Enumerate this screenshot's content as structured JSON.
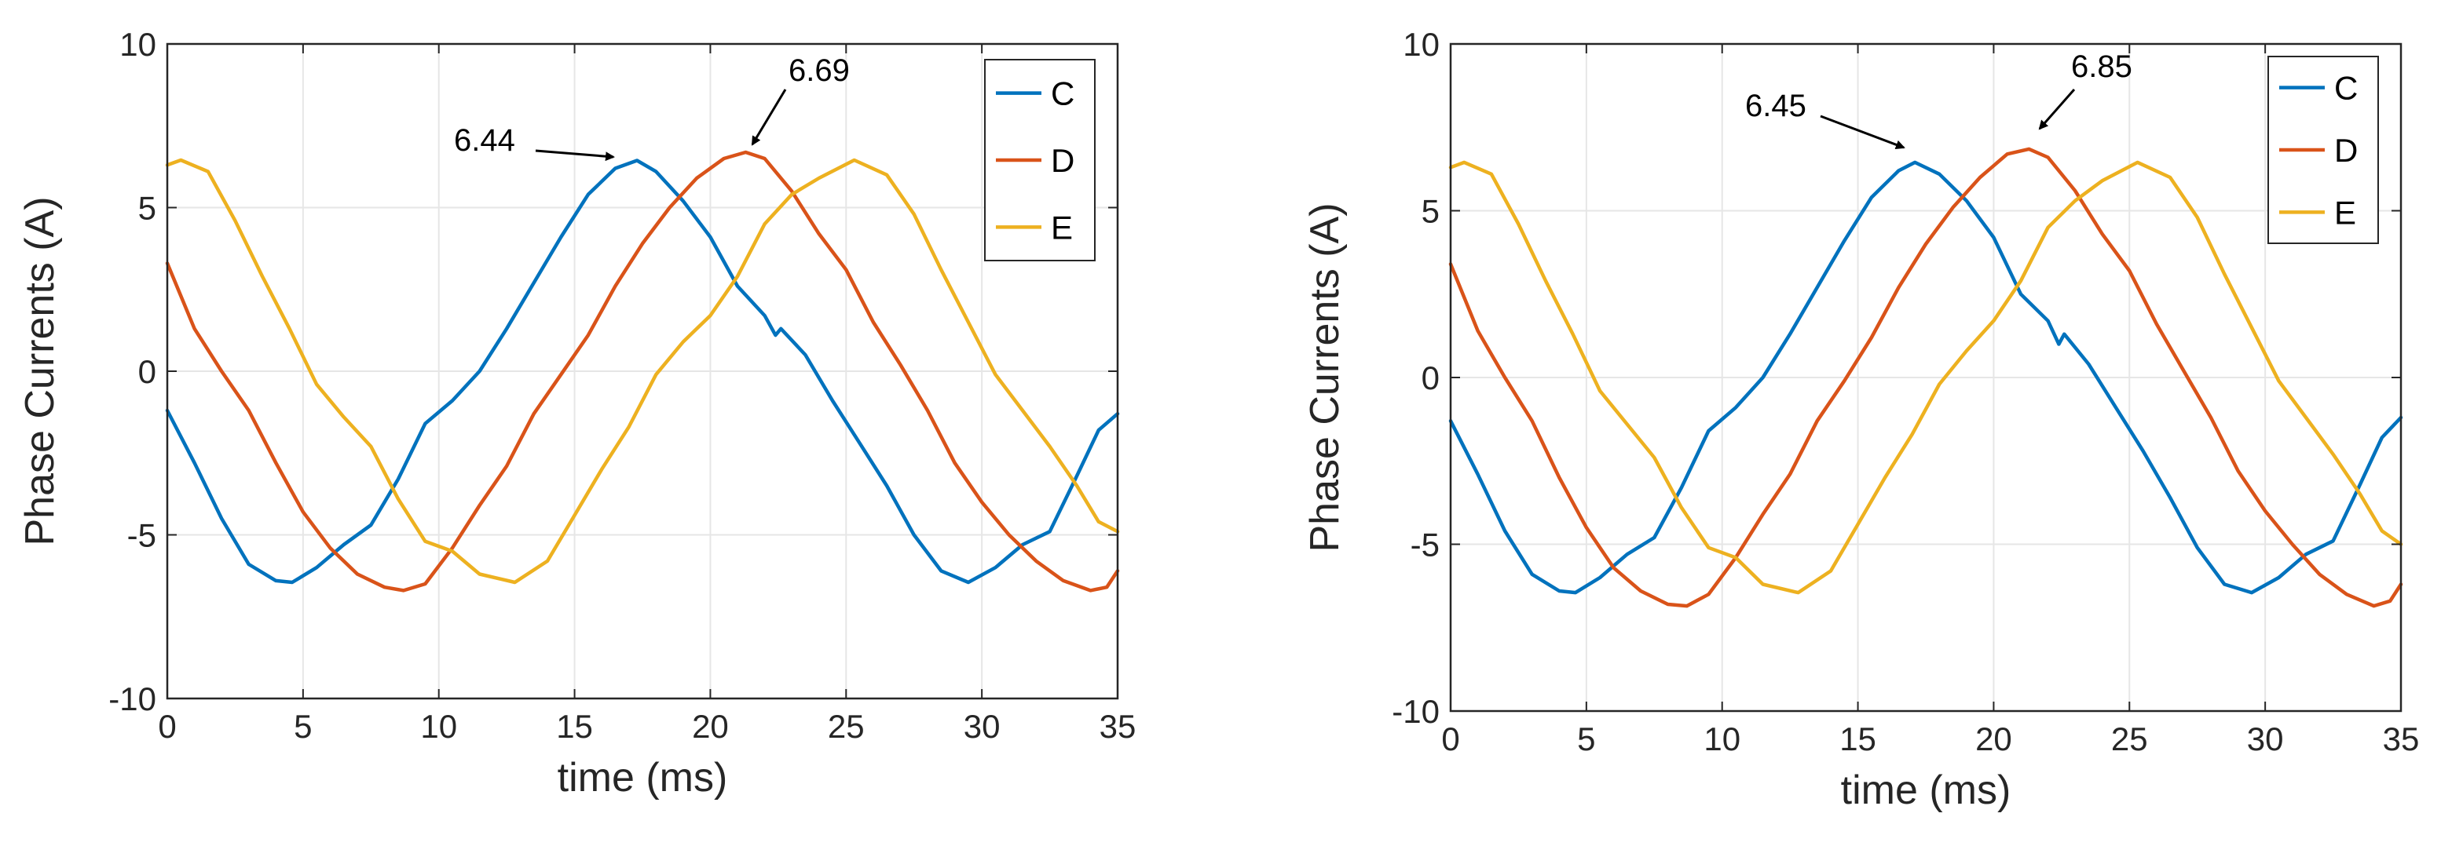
{
  "chart_data": [
    {
      "type": "line",
      "title": "",
      "xlabel": "time (ms)",
      "ylabel": "Phase Currents (A)",
      "xlim": [
        0,
        35
      ],
      "ylim": [
        -10,
        10
      ],
      "xticks": [
        0,
        5,
        10,
        15,
        20,
        25,
        30,
        35
      ],
      "yticks": [
        -10,
        -5,
        0,
        5,
        10
      ],
      "xtick_labels": [
        "0",
        "5",
        "10",
        "15",
        "20",
        "25",
        "30",
        "35"
      ],
      "ytick_labels": [
        "-10",
        "-5",
        "0",
        "5",
        "10"
      ],
      "grid": true,
      "legend_position": "top-right",
      "series": [
        {
          "name": "C",
          "color": "#0072BD",
          "points": [
            [
              0,
              -1.2
            ],
            [
              1,
              -2.8
            ],
            [
              2,
              -4.5
            ],
            [
              3,
              -5.9
            ],
            [
              4,
              -6.4
            ],
            [
              4.6,
              -6.45
            ],
            [
              5.5,
              -6.0
            ],
            [
              6.5,
              -5.3
            ],
            [
              7.5,
              -4.7
            ],
            [
              8.5,
              -3.3
            ],
            [
              9.5,
              -1.6
            ],
            [
              10.5,
              -0.9
            ],
            [
              11.5,
              0.0
            ],
            [
              12.5,
              1.3
            ],
            [
              13.5,
              2.7
            ],
            [
              14.5,
              4.1
            ],
            [
              15.5,
              5.4
            ],
            [
              16.5,
              6.2
            ],
            [
              17.3,
              6.44
            ],
            [
              18,
              6.1
            ],
            [
              19,
              5.2
            ],
            [
              20,
              4.1
            ],
            [
              21,
              2.6
            ],
            [
              22,
              1.7
            ],
            [
              22.4,
              1.1
            ],
            [
              22.6,
              1.3
            ],
            [
              23.5,
              0.5
            ],
            [
              24.5,
              -0.9
            ],
            [
              25.5,
              -2.2
            ],
            [
              26.5,
              -3.5
            ],
            [
              27.5,
              -5.0
            ],
            [
              28.5,
              -6.1
            ],
            [
              29.5,
              -6.45
            ],
            [
              30.5,
              -6.0
            ],
            [
              31.5,
              -5.3
            ],
            [
              32.5,
              -4.9
            ],
            [
              33.5,
              -3.2
            ],
            [
              34.3,
              -1.8
            ],
            [
              35,
              -1.3
            ]
          ]
        },
        {
          "name": "D",
          "color": "#D95319",
          "points": [
            [
              0,
              3.3
            ],
            [
              1,
              1.3
            ],
            [
              2,
              0.0
            ],
            [
              3,
              -1.2
            ],
            [
              4,
              -2.8
            ],
            [
              5,
              -4.3
            ],
            [
              6,
              -5.4
            ],
            [
              7,
              -6.2
            ],
            [
              8,
              -6.6
            ],
            [
              8.7,
              -6.7
            ],
            [
              9.5,
              -6.5
            ],
            [
              10.5,
              -5.4
            ],
            [
              11.5,
              -4.1
            ],
            [
              12.5,
              -2.9
            ],
            [
              13.5,
              -1.3
            ],
            [
              14.5,
              -0.1
            ],
            [
              15.5,
              1.1
            ],
            [
              16.5,
              2.6
            ],
            [
              17.5,
              3.9
            ],
            [
              18.5,
              5.0
            ],
            [
              19.5,
              5.9
            ],
            [
              20.5,
              6.5
            ],
            [
              21.3,
              6.69
            ],
            [
              22,
              6.5
            ],
            [
              23,
              5.5
            ],
            [
              24,
              4.2
            ],
            [
              25,
              3.1
            ],
            [
              26,
              1.5
            ],
            [
              27,
              0.2
            ],
            [
              28,
              -1.2
            ],
            [
              29,
              -2.8
            ],
            [
              30,
              -4.0
            ],
            [
              31,
              -5.0
            ],
            [
              32,
              -5.8
            ],
            [
              33,
              -6.4
            ],
            [
              34,
              -6.7
            ],
            [
              34.6,
              -6.6
            ],
            [
              35,
              -6.1
            ]
          ]
        },
        {
          "name": "E",
          "color": "#EDB120",
          "points": [
            [
              0,
              6.3
            ],
            [
              0.5,
              6.45
            ],
            [
              1.5,
              6.1
            ],
            [
              2.5,
              4.6
            ],
            [
              3.5,
              2.9
            ],
            [
              4.5,
              1.3
            ],
            [
              5.5,
              -0.4
            ],
            [
              6.5,
              -1.4
            ],
            [
              7.5,
              -2.3
            ],
            [
              8.5,
              -3.9
            ],
            [
              9.5,
              -5.2
            ],
            [
              10.5,
              -5.5
            ],
            [
              11.5,
              -6.2
            ],
            [
              12.8,
              -6.45
            ],
            [
              14,
              -5.8
            ],
            [
              15,
              -4.4
            ],
            [
              16,
              -3.0
            ],
            [
              17,
              -1.7
            ],
            [
              18,
              -0.1
            ],
            [
              19,
              0.9
            ],
            [
              20,
              1.7
            ],
            [
              21,
              2.9
            ],
            [
              22,
              4.5
            ],
            [
              23,
              5.4
            ],
            [
              24,
              5.9
            ],
            [
              25.3,
              6.45
            ],
            [
              26.5,
              6.0
            ],
            [
              27.5,
              4.8
            ],
            [
              28.5,
              3.1
            ],
            [
              29.5,
              1.5
            ],
            [
              30.5,
              -0.1
            ],
            [
              31.5,
              -1.2
            ],
            [
              32.5,
              -2.3
            ],
            [
              33.5,
              -3.5
            ],
            [
              34.3,
              -4.6
            ],
            [
              35,
              -4.9
            ]
          ]
        }
      ],
      "annotations": [
        {
          "label": "6.44",
          "x": 17.3,
          "y": 6.44
        },
        {
          "label": "6.69",
          "x": 21.3,
          "y": 6.69
        }
      ]
    },
    {
      "type": "line",
      "title": "",
      "xlabel": "time (ms)",
      "ylabel": "Phase Currents (A)",
      "xlim": [
        0,
        35
      ],
      "ylim": [
        -10,
        10
      ],
      "xticks": [
        0,
        5,
        10,
        15,
        20,
        25,
        30,
        35
      ],
      "yticks": [
        -10,
        -5,
        0,
        5,
        10
      ],
      "xtick_labels": [
        "0",
        "5",
        "10",
        "15",
        "20",
        "25",
        "30",
        "35"
      ],
      "ytick_labels": [
        "-10",
        "-5",
        "0",
        "5",
        "10"
      ],
      "grid": true,
      "legend_position": "top-right",
      "series": [
        {
          "name": "C",
          "color": "#0072BD",
          "points": [
            [
              0,
              -1.3
            ],
            [
              1,
              -2.9
            ],
            [
              2,
              -4.6
            ],
            [
              3,
              -5.9
            ],
            [
              4,
              -6.4
            ],
            [
              4.6,
              -6.45
            ],
            [
              5.5,
              -6.0
            ],
            [
              6.5,
              -5.3
            ],
            [
              7.5,
              -4.8
            ],
            [
              8.5,
              -3.3
            ],
            [
              9.5,
              -1.6
            ],
            [
              10.5,
              -0.9
            ],
            [
              11.5,
              0.0
            ],
            [
              12.5,
              1.3
            ],
            [
              13.5,
              2.7
            ],
            [
              14.5,
              4.1
            ],
            [
              15.5,
              5.4
            ],
            [
              16.5,
              6.2
            ],
            [
              17.1,
              6.45
            ],
            [
              18,
              6.1
            ],
            [
              19,
              5.3
            ],
            [
              20,
              4.2
            ],
            [
              21,
              2.5
            ],
            [
              22,
              1.7
            ],
            [
              22.4,
              1.0
            ],
            [
              22.6,
              1.3
            ],
            [
              23.5,
              0.4
            ],
            [
              24.5,
              -0.9
            ],
            [
              25.5,
              -2.2
            ],
            [
              26.5,
              -3.6
            ],
            [
              27.5,
              -5.1
            ],
            [
              28.5,
              -6.2
            ],
            [
              29.5,
              -6.45
            ],
            [
              30.5,
              -6.0
            ],
            [
              31.5,
              -5.3
            ],
            [
              32.5,
              -4.9
            ],
            [
              33.5,
              -3.2
            ],
            [
              34.3,
              -1.8
            ],
            [
              35,
              -1.2
            ]
          ]
        },
        {
          "name": "D",
          "color": "#D95319",
          "points": [
            [
              0,
              3.4
            ],
            [
              1,
              1.4
            ],
            [
              2,
              0.0
            ],
            [
              3,
              -1.3
            ],
            [
              4,
              -3.0
            ],
            [
              5,
              -4.5
            ],
            [
              6,
              -5.7
            ],
            [
              7,
              -6.4
            ],
            [
              8,
              -6.8
            ],
            [
              8.7,
              -6.85
            ],
            [
              9.5,
              -6.5
            ],
            [
              10.5,
              -5.4
            ],
            [
              11.5,
              -4.1
            ],
            [
              12.5,
              -2.9
            ],
            [
              13.5,
              -1.3
            ],
            [
              14.5,
              -0.1
            ],
            [
              15.5,
              1.2
            ],
            [
              16.5,
              2.7
            ],
            [
              17.5,
              4.0
            ],
            [
              18.5,
              5.1
            ],
            [
              19.5,
              6.0
            ],
            [
              20.5,
              6.7
            ],
            [
              21.3,
              6.85
            ],
            [
              22,
              6.6
            ],
            [
              23,
              5.6
            ],
            [
              24,
              4.3
            ],
            [
              25,
              3.2
            ],
            [
              26,
              1.6
            ],
            [
              27,
              0.2
            ],
            [
              28,
              -1.2
            ],
            [
              29,
              -2.8
            ],
            [
              30,
              -4.0
            ],
            [
              31,
              -5.0
            ],
            [
              32,
              -5.9
            ],
            [
              33,
              -6.5
            ],
            [
              34,
              -6.85
            ],
            [
              34.6,
              -6.7
            ],
            [
              35,
              -6.2
            ]
          ]
        },
        {
          "name": "E",
          "color": "#EDB120",
          "points": [
            [
              0,
              6.3
            ],
            [
              0.5,
              6.45
            ],
            [
              1.5,
              6.1
            ],
            [
              2.5,
              4.6
            ],
            [
              3.5,
              2.9
            ],
            [
              4.5,
              1.3
            ],
            [
              5.5,
              -0.4
            ],
            [
              6.5,
              -1.4
            ],
            [
              7.5,
              -2.4
            ],
            [
              8.5,
              -3.9
            ],
            [
              9.5,
              -5.1
            ],
            [
              10.5,
              -5.4
            ],
            [
              11.5,
              -6.2
            ],
            [
              12.8,
              -6.45
            ],
            [
              14,
              -5.8
            ],
            [
              15,
              -4.4
            ],
            [
              16,
              -3.0
            ],
            [
              17,
              -1.7
            ],
            [
              18,
              -0.2
            ],
            [
              19,
              0.8
            ],
            [
              20,
              1.7
            ],
            [
              21,
              2.9
            ],
            [
              22,
              4.5
            ],
            [
              23,
              5.3
            ],
            [
              24,
              5.9
            ],
            [
              25.3,
              6.45
            ],
            [
              26.5,
              6.0
            ],
            [
              27.5,
              4.8
            ],
            [
              28.5,
              3.1
            ],
            [
              29.5,
              1.5
            ],
            [
              30.5,
              -0.1
            ],
            [
              31.5,
              -1.2
            ],
            [
              32.5,
              -2.3
            ],
            [
              33.5,
              -3.5
            ],
            [
              34.3,
              -4.6
            ],
            [
              35,
              -5.0
            ]
          ]
        }
      ],
      "annotations": [
        {
          "label": "6.45",
          "x": 17.1,
          "y": 6.45
        },
        {
          "label": "6.85",
          "x": 21.3,
          "y": 6.85
        }
      ]
    }
  ]
}
